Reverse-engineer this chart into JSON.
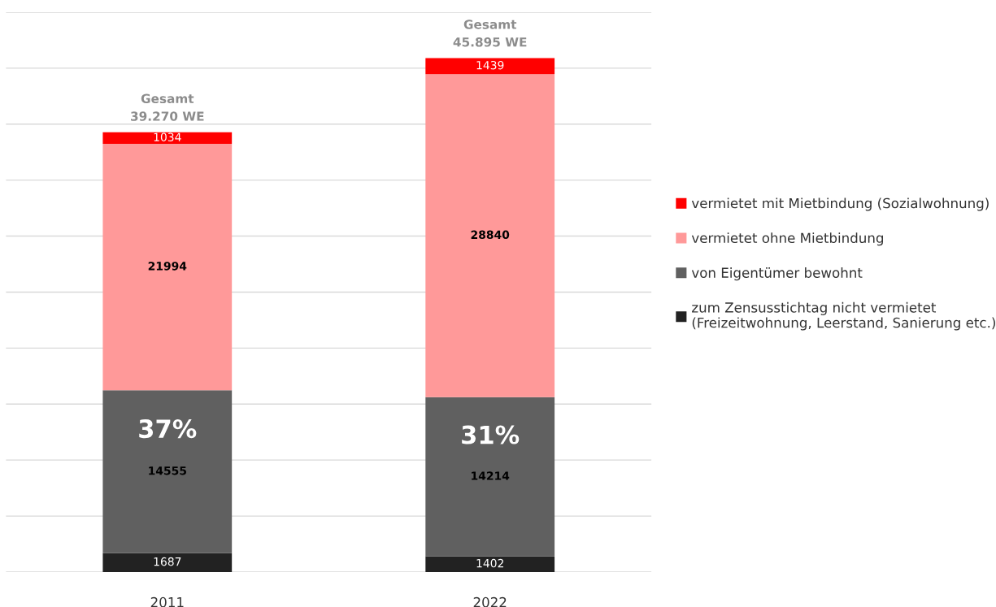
{
  "chart_data": {
    "type": "bar",
    "stacked": true,
    "categories": [
      "2011",
      "2022"
    ],
    "series": [
      {
        "name": "zum Zensusstichtag nicht vermietet\n(Freizeitwohnung, Leerstand, Sanierung etc.)",
        "color": "#222222",
        "values": [
          1687,
          1402
        ]
      },
      {
        "name": "von Eigentümer bewohnt",
        "color": "#606060",
        "values": [
          14555,
          14214
        ]
      },
      {
        "name": "vermietet ohne Mietbindung",
        "color": "#ff9999",
        "values": [
          21994,
          28840
        ]
      },
      {
        "name": "vermietet mit Mietbindung (Sozialwohnung)",
        "color": "#ff0000",
        "values": [
          1034,
          1439
        ]
      }
    ],
    "ylim": [
      0,
      50000
    ],
    "yticks": [
      {
        "value": 0,
        "label": null
      },
      {
        "value": 5000,
        "label": null
      },
      {
        "value": 10000,
        "label": null
      },
      {
        "value": 15000,
        "label": null
      },
      {
        "value": 20000,
        "label": null
      },
      {
        "value": 25000,
        "label": null
      },
      {
        "value": 30000,
        "label": null
      },
      {
        "value": 35000,
        "label": null
      },
      {
        "value": 40000,
        "label": null
      },
      {
        "value": 45000,
        "label": null
      },
      {
        "value": 50000,
        "label": null
      }
    ],
    "tick_labels": "x",
    "grid": "y",
    "legend": "right",
    "data_labels": true,
    "totals": [
      "Gesamt\n39.270 WE",
      "Gesamt\n45.895 WE"
    ],
    "annotations": [
      "37%",
      "31%"
    ]
  }
}
